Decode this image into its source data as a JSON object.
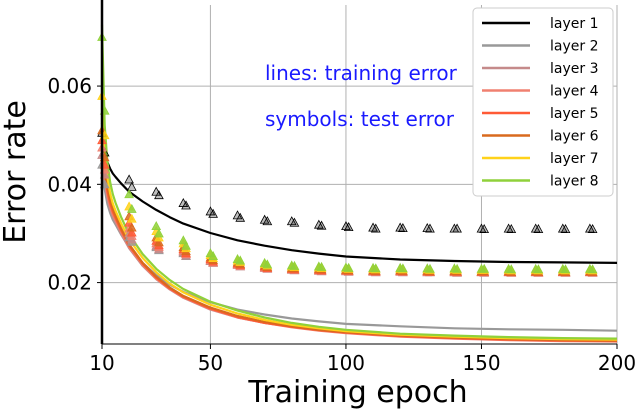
{
  "chart_data": {
    "type": "line",
    "title": "",
    "xlabel": "Training epoch",
    "ylabel": "Error rate",
    "xlim": [
      10,
      200
    ],
    "ylim": [
      0.0075,
      0.0765
    ],
    "xticks": [
      10,
      50,
      100,
      150,
      200
    ],
    "xtick_labels": [
      "10",
      "50",
      "100",
      "150",
      "200"
    ],
    "yticks": [
      0.02,
      0.04,
      0.06
    ],
    "ytick_labels": [
      "0.02",
      "0.04",
      "0.06"
    ],
    "grid": true,
    "legend_position": "top-right",
    "annotations": [
      "lines: training error",
      "symbols: test error"
    ],
    "training_x": [
      10,
      11,
      12,
      13,
      14,
      15,
      17,
      20,
      25,
      30,
      35,
      40,
      50,
      60,
      70,
      80,
      90,
      100,
      120,
      140,
      160,
      180,
      200
    ],
    "test_x": [
      10,
      11,
      20,
      21,
      30,
      31,
      40,
      41,
      50,
      51,
      60,
      61,
      70,
      71,
      80,
      81,
      90,
      91,
      100,
      101,
      110,
      111,
      120,
      121,
      130,
      131,
      140,
      141,
      150,
      151,
      160,
      161,
      170,
      171,
      180,
      181,
      190,
      191
    ],
    "series": [
      {
        "name": "layer 1",
        "color": "#000000",
        "train": [
          0.0525,
          0.0465,
          0.0445,
          0.0432,
          0.0422,
          0.0415,
          0.0402,
          0.0385,
          0.0365,
          0.0348,
          0.0333,
          0.032,
          0.0301,
          0.0286,
          0.0275,
          0.0266,
          0.0259,
          0.0253,
          0.0247,
          0.0244,
          0.0242,
          0.0241,
          0.024
        ],
        "test": [
          0.0505,
          0.0465,
          0.041,
          0.0395,
          0.0385,
          0.0378,
          0.0362,
          0.0357,
          0.0345,
          0.034,
          0.0337,
          0.0332,
          0.0328,
          0.0325,
          0.0325,
          0.0322,
          0.0318,
          0.0316,
          0.0315,
          0.0313,
          0.0312,
          0.031,
          0.0312,
          0.0311,
          0.0311,
          0.031,
          0.031,
          0.031,
          0.031,
          0.0309,
          0.031,
          0.0309,
          0.031,
          0.0309,
          0.031,
          0.0309,
          0.031,
          0.0309
        ]
      },
      {
        "name": "layer 2",
        "color": "#999999",
        "train": [
          0.0435,
          0.039,
          0.036,
          0.0342,
          0.0328,
          0.0318,
          0.0298,
          0.0272,
          0.024,
          0.0215,
          0.0196,
          0.0181,
          0.016,
          0.0145,
          0.0135,
          0.0127,
          0.0121,
          0.0116,
          0.0111,
          0.0107,
          0.0105,
          0.0104,
          0.0102
        ],
        "test": [
          0.044,
          0.04,
          0.0292,
          0.0283,
          0.0272,
          0.0266,
          0.026,
          0.0254,
          0.0245,
          0.0241,
          0.0238,
          0.0236,
          0.0233,
          0.023,
          0.0228,
          0.0226,
          0.0227,
          0.0225,
          0.0225,
          0.0224,
          0.0224,
          0.0223,
          0.0224,
          0.0223,
          0.0223,
          0.0222,
          0.0223,
          0.0222,
          0.0222,
          0.0222,
          0.0222,
          0.0221,
          0.0222,
          0.0221,
          0.0222,
          0.0221,
          0.0222,
          0.0221
        ]
      },
      {
        "name": "layer 3",
        "color": "#c58a8a",
        "train": [
          0.0455,
          0.0405,
          0.0372,
          0.035,
          0.0335,
          0.0323,
          0.03,
          0.027,
          0.0234,
          0.0207,
          0.0186,
          0.0169,
          0.0145,
          0.0129,
          0.0118,
          0.011,
          0.0103,
          0.0098,
          0.0091,
          0.0087,
          0.0084,
          0.0082,
          0.0081
        ],
        "test": [
          0.046,
          0.042,
          0.03,
          0.0288,
          0.0275,
          0.0268,
          0.0262,
          0.0255,
          0.0244,
          0.024,
          0.0236,
          0.0233,
          0.023,
          0.0228,
          0.0226,
          0.0225,
          0.0224,
          0.0223,
          0.0223,
          0.0222,
          0.0222,
          0.0221,
          0.0222,
          0.0221,
          0.0221,
          0.0221,
          0.0221,
          0.022,
          0.0221,
          0.022,
          0.0221,
          0.022,
          0.0221,
          0.022,
          0.0221,
          0.022,
          0.0221,
          0.022
        ]
      },
      {
        "name": "layer 4",
        "color": "#f08070",
        "train": [
          0.0465,
          0.0412,
          0.0378,
          0.0355,
          0.0339,
          0.0327,
          0.0304,
          0.0273,
          0.0236,
          0.0208,
          0.0187,
          0.017,
          0.0146,
          0.0129,
          0.0118,
          0.0109,
          0.0102,
          0.0097,
          0.009,
          0.0086,
          0.0083,
          0.0081,
          0.008
        ],
        "test": [
          0.0475,
          0.043,
          0.031,
          0.0295,
          0.028,
          0.0272,
          0.0265,
          0.0258,
          0.0246,
          0.0241,
          0.0237,
          0.0234,
          0.0231,
          0.0229,
          0.0227,
          0.0226,
          0.0225,
          0.0224,
          0.0224,
          0.0223,
          0.0223,
          0.0222,
          0.0223,
          0.0222,
          0.0222,
          0.0222,
          0.0222,
          0.0221,
          0.0222,
          0.0221,
          0.0222,
          0.0221,
          0.0222,
          0.0221,
          0.0222,
          0.0221,
          0.0222,
          0.0221
        ]
      },
      {
        "name": "layer 5",
        "color": "#ff5a36",
        "train": [
          0.048,
          0.042,
          0.0385,
          0.0361,
          0.0344,
          0.0331,
          0.0307,
          0.0275,
          0.0238,
          0.021,
          0.0188,
          0.0171,
          0.0147,
          0.013,
          0.0118,
          0.011,
          0.0103,
          0.0098,
          0.0091,
          0.0087,
          0.0084,
          0.0082,
          0.0081
        ],
        "test": [
          0.049,
          0.044,
          0.0322,
          0.0302,
          0.0285,
          0.0276,
          0.0268,
          0.026,
          0.0248,
          0.0243,
          0.0239,
          0.0236,
          0.0233,
          0.023,
          0.0228,
          0.0227,
          0.0226,
          0.0225,
          0.0225,
          0.0224,
          0.0224,
          0.0223,
          0.0224,
          0.0223,
          0.0223,
          0.0222,
          0.0223,
          0.0222,
          0.0222,
          0.0222,
          0.0222,
          0.0221,
          0.0222,
          0.0221,
          0.0222,
          0.0221,
          0.0222,
          0.0221
        ]
      },
      {
        "name": "layer 6",
        "color": "#d96a1e",
        "train": [
          0.05,
          0.0432,
          0.0393,
          0.0368,
          0.035,
          0.0336,
          0.0311,
          0.0278,
          0.024,
          0.0212,
          0.019,
          0.0173,
          0.0149,
          0.0132,
          0.012,
          0.0111,
          0.0104,
          0.0099,
          0.0092,
          0.0088,
          0.0085,
          0.0083,
          0.0082
        ],
        "test": [
          0.051,
          0.0455,
          0.0335,
          0.0312,
          0.0292,
          0.0282,
          0.0272,
          0.0264,
          0.0251,
          0.0246,
          0.0241,
          0.0238,
          0.0235,
          0.0232,
          0.023,
          0.0229,
          0.0228,
          0.0227,
          0.0226,
          0.0225,
          0.0225,
          0.0224,
          0.0225,
          0.0224,
          0.0224,
          0.0223,
          0.0224,
          0.0223,
          0.0223,
          0.0223,
          0.0223,
          0.0222,
          0.0223,
          0.0222,
          0.0223,
          0.0222,
          0.0223,
          0.0222
        ]
      },
      {
        "name": "layer 7",
        "color": "#ffd21a",
        "train": [
          0.0555,
          0.047,
          0.0415,
          0.0382,
          0.0361,
          0.0346,
          0.0321,
          0.0288,
          0.025,
          0.0221,
          0.0198,
          0.018,
          0.0155,
          0.0137,
          0.0124,
          0.0114,
          0.0107,
          0.0101,
          0.0094,
          0.009,
          0.0087,
          0.0085,
          0.0084
        ],
        "test": [
          0.058,
          0.05,
          0.0355,
          0.033,
          0.0305,
          0.0292,
          0.028,
          0.027,
          0.0256,
          0.025,
          0.0245,
          0.0242,
          0.0238,
          0.0235,
          0.0233,
          0.0232,
          0.0231,
          0.023,
          0.0229,
          0.0228,
          0.0228,
          0.0227,
          0.0228,
          0.0227,
          0.0227,
          0.0226,
          0.0227,
          0.0226,
          0.0226,
          0.0226,
          0.0226,
          0.0225,
          0.0226,
          0.0225,
          0.0226,
          0.0225,
          0.0226,
          0.0225
        ]
      },
      {
        "name": "layer 8",
        "color": "#8fd13a",
        "train": [
          0.0725,
          0.052,
          0.0445,
          0.0405,
          0.038,
          0.0362,
          0.0334,
          0.0298,
          0.0258,
          0.0228,
          0.0205,
          0.0187,
          0.0161,
          0.0143,
          0.0129,
          0.0118,
          0.011,
          0.0104,
          0.0096,
          0.0092,
          0.0089,
          0.0087,
          0.0086
        ],
        "test": [
          0.07,
          0.055,
          0.038,
          0.035,
          0.0315,
          0.03,
          0.0286,
          0.0275,
          0.026,
          0.0254,
          0.0248,
          0.0245,
          0.024,
          0.0237,
          0.0235,
          0.0234,
          0.0233,
          0.0232,
          0.0231,
          0.023,
          0.023,
          0.0229,
          0.023,
          0.0229,
          0.0229,
          0.0228,
          0.0229,
          0.0228,
          0.0228,
          0.0228,
          0.0228,
          0.0227,
          0.0228,
          0.0227,
          0.0228,
          0.0227,
          0.0228,
          0.0227
        ]
      }
    ]
  }
}
